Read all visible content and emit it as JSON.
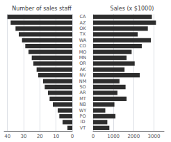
{
  "chart_data": [
    {
      "type": "bar",
      "orientation": "horizontal",
      "title": "Number of sales staff",
      "categories": [
        "CA",
        "AZ",
        "OK",
        "TX",
        "WA",
        "CO",
        "MO",
        "MN",
        "OR",
        "AK",
        "NV",
        "NM",
        "SO",
        "AR",
        "MT",
        "NB",
        "WY",
        "PO",
        "ID",
        "VT"
      ],
      "values": [
        40,
        38,
        35,
        33,
        31,
        29,
        27,
        25,
        24,
        22,
        21,
        18,
        17,
        15,
        14,
        12,
        9,
        8,
        6,
        3
      ],
      "color": "#2d2d2d",
      "xlim": [
        42,
        0
      ],
      "xticks": [
        40,
        30,
        20,
        10,
        0
      ],
      "grid": true
    },
    {
      "type": "bar",
      "orientation": "horizontal",
      "title": "Sales (x $1000)",
      "categories": [
        "CA",
        "AZ",
        "OK",
        "TX",
        "WA",
        "CO",
        "MO",
        "MN",
        "OR",
        "AK",
        "NV",
        "NM",
        "SO",
        "AR",
        "MT",
        "NB",
        "WY",
        "PO",
        "ID",
        "VT"
      ],
      "values": [
        2900,
        3100,
        2700,
        2200,
        2850,
        2400,
        1900,
        1650,
        2050,
        1550,
        2300,
        1300,
        1600,
        1200,
        1650,
        1050,
        600,
        1100,
        700,
        800
      ],
      "color": "#2d2d2d",
      "xlim": [
        0,
        3500
      ],
      "xticks": [
        0,
        1000,
        2000,
        3000
      ],
      "grid": true,
      "tick_labels": "x"
    }
  ]
}
